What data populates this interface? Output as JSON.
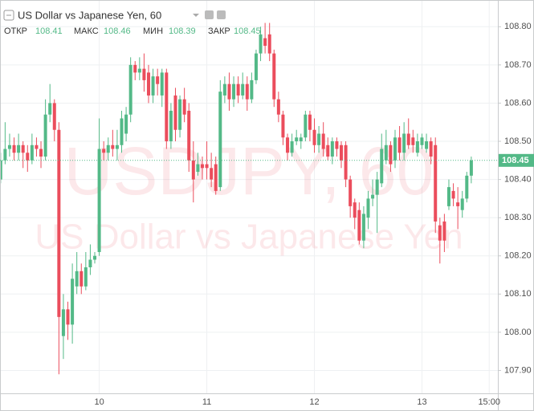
{
  "header": {
    "title": "US Dollar vs Japanese Yen, 60",
    "ohlc": [
      {
        "label": "ОТКР",
        "value": 108.41
      },
      {
        "label": "МАКС",
        "value": 108.46
      },
      {
        "label": "МИН",
        "value": 108.39
      },
      {
        "label": "ЗАКР",
        "value": 108.45
      }
    ]
  },
  "chart_data": {
    "type": "candlestick",
    "watermark": [
      "USDJPY, 60",
      "US Dollar vs Japanese Yen"
    ],
    "up_color": "#53b987",
    "down_color": "#eb4d5c",
    "categories": [
      null,
      null,
      null,
      null,
      null,
      null,
      null,
      null,
      null,
      null,
      null,
      null,
      null,
      null,
      null,
      null,
      null,
      null,
      null,
      null,
      null,
      null,
      "10",
      null,
      null,
      null,
      null,
      null,
      null,
      null,
      null,
      null,
      null,
      null,
      null,
      null,
      null,
      null,
      null,
      null,
      null,
      null,
      null,
      null,
      null,
      null,
      "11",
      null,
      null,
      null,
      null,
      null,
      null,
      null,
      null,
      null,
      null,
      null,
      null,
      null,
      null,
      null,
      null,
      null,
      null,
      null,
      null,
      null,
      null,
      null,
      "12",
      null,
      null,
      null,
      null,
      null,
      null,
      null,
      null,
      null,
      null,
      null,
      null,
      null,
      null,
      null,
      null,
      null,
      null,
      null,
      null,
      null,
      null,
      null,
      "13",
      null,
      null,
      null,
      null,
      null,
      null,
      null,
      null,
      null,
      null,
      null,
      null,
      null,
      null,
      "15:00"
    ],
    "open": [
      108.4,
      108.45,
      108.48,
      108.49,
      108.47,
      108.49,
      108.47,
      108.45,
      108.49,
      108.48,
      108.46,
      108.57,
      108.6,
      108.53,
      107.99,
      108.06,
      108.02,
      108.12,
      108.16,
      108.12,
      108.17,
      108.19,
      108.21,
      108.48,
      108.47,
      108.49,
      108.48,
      108.49,
      108.52,
      108.57,
      108.7,
      108.68,
      108.69,
      108.68,
      108.62,
      108.67,
      108.62,
      108.68,
      108.5,
      108.62,
      108.53,
      108.61,
      108.58,
      108.45,
      108.42,
      108.44,
      108.44,
      108.43,
      108.44,
      108.38,
      108.62,
      108.65,
      108.61,
      108.65,
      108.62,
      108.65,
      108.61,
      108.66,
      108.73,
      108.77,
      108.78,
      108.73,
      108.61,
      108.57,
      108.51,
      108.47,
      108.5,
      108.5,
      108.51,
      108.57,
      108.53,
      108.49,
      108.52,
      108.49,
      108.46,
      108.5,
      108.49,
      108.49,
      108.4,
      108.34,
      108.32,
      108.24,
      108.3,
      108.35,
      108.36,
      108.39,
      108.45,
      108.49,
      108.45,
      108.51,
      108.47,
      108.52,
      108.51,
      108.47,
      108.49,
      108.48,
      108.5,
      108.49,
      108.28,
      108.29,
      108.33,
      108.37,
      108.34,
      108.32,
      108.35,
      108.41,
      null,
      null,
      null,
      null
    ],
    "high": [
      108.47,
      108.55,
      108.52,
      108.51,
      108.52,
      108.5,
      108.49,
      108.52,
      108.51,
      108.5,
      108.61,
      108.65,
      108.61,
      108.55,
      108.1,
      108.08,
      108.18,
      108.21,
      108.18,
      108.21,
      108.23,
      108.21,
      108.56,
      108.5,
      108.51,
      108.53,
      108.53,
      108.58,
      108.59,
      108.72,
      108.71,
      108.72,
      108.73,
      108.7,
      108.69,
      108.69,
      108.69,
      108.69,
      108.6,
      108.64,
      108.62,
      108.64,
      108.6,
      108.5,
      108.47,
      108.46,
      108.5,
      108.47,
      108.46,
      108.66,
      108.67,
      108.68,
      108.67,
      108.67,
      108.68,
      108.67,
      108.68,
      108.74,
      108.8,
      108.81,
      108.81,
      108.74,
      108.63,
      108.58,
      108.52,
      108.52,
      108.53,
      108.52,
      108.58,
      108.58,
      108.56,
      108.54,
      108.55,
      108.51,
      108.51,
      108.51,
      108.5,
      108.5,
      108.41,
      108.35,
      108.34,
      108.33,
      108.37,
      108.4,
      108.42,
      108.52,
      108.53,
      108.5,
      108.53,
      108.54,
      108.55,
      108.56,
      108.53,
      108.52,
      108.52,
      108.52,
      108.51,
      108.51,
      108.3,
      108.31,
      108.4,
      108.39,
      108.38,
      108.37,
      108.42,
      108.46,
      null,
      null,
      null,
      null
    ],
    "low": [
      108.39,
      108.44,
      108.46,
      108.45,
      108.45,
      108.43,
      108.42,
      108.44,
      108.46,
      108.43,
      108.45,
      108.55,
      108.5,
      107.89,
      107.93,
      107.98,
      107.97,
      108.1,
      108.1,
      108.11,
      108.15,
      108.18,
      108.2,
      108.45,
      108.45,
      108.46,
      108.45,
      108.47,
      108.5,
      108.55,
      108.66,
      108.66,
      108.63,
      108.6,
      108.6,
      108.62,
      108.59,
      108.48,
      108.48,
      108.5,
      108.51,
      108.55,
      108.42,
      108.34,
      108.41,
      108.4,
      108.4,
      108.38,
      108.36,
      108.37,
      108.6,
      108.58,
      108.59,
      108.6,
      108.61,
      108.58,
      108.6,
      108.65,
      108.71,
      108.73,
      108.71,
      108.59,
      108.55,
      108.49,
      108.45,
      108.46,
      108.49,
      108.48,
      108.5,
      108.5,
      108.47,
      108.47,
      108.46,
      108.45,
      108.44,
      108.46,
      108.43,
      108.38,
      108.3,
      108.27,
      108.23,
      108.22,
      108.27,
      108.33,
      108.26,
      108.38,
      108.44,
      108.42,
      108.43,
      108.45,
      108.45,
      108.48,
      108.47,
      108.46,
      108.48,
      108.47,
      108.44,
      108.26,
      108.18,
      108.21,
      108.32,
      108.33,
      108.27,
      108.3,
      108.34,
      108.39,
      null,
      null,
      null,
      null
    ],
    "close": [
      108.45,
      108.48,
      108.49,
      108.47,
      108.49,
      108.47,
      108.45,
      108.49,
      108.48,
      108.46,
      108.57,
      108.6,
      108.53,
      108.04,
      108.06,
      108.02,
      108.14,
      108.16,
      108.12,
      108.17,
      108.19,
      108.2,
      108.48,
      108.47,
      108.49,
      108.48,
      108.49,
      108.56,
      108.57,
      108.7,
      108.68,
      108.69,
      108.66,
      108.62,
      108.67,
      108.65,
      108.68,
      108.5,
      108.58,
      108.53,
      108.61,
      108.57,
      108.45,
      108.4,
      108.44,
      108.43,
      108.43,
      108.4,
      108.37,
      108.63,
      108.65,
      108.61,
      108.65,
      108.62,
      108.65,
      108.61,
      108.66,
      108.73,
      108.78,
      108.75,
      108.73,
      108.61,
      108.57,
      108.51,
      108.47,
      108.5,
      108.51,
      108.51,
      108.57,
      108.53,
      108.49,
      108.52,
      108.48,
      108.46,
      108.5,
      108.48,
      108.45,
      108.4,
      108.33,
      108.3,
      108.24,
      108.31,
      108.35,
      108.36,
      108.4,
      108.48,
      108.49,
      108.44,
      108.51,
      108.47,
      108.52,
      108.49,
      108.49,
      108.5,
      108.51,
      108.5,
      108.46,
      108.29,
      108.24,
      108.24,
      108.38,
      108.35,
      108.33,
      108.35,
      108.41,
      108.45,
      null,
      null,
      null,
      null
    ],
    "last_price": 108.45,
    "ylim": [
      107.84,
      108.87
    ],
    "yticks": [
      {
        "value": 107.9,
        "label": "107.90"
      },
      {
        "value": 108.0,
        "label": "108.00"
      },
      {
        "value": 108.1,
        "label": "108.10"
      },
      {
        "value": 108.2,
        "label": "108.20"
      },
      {
        "value": 108.3,
        "label": "108.30"
      },
      {
        "value": 108.4,
        "label": "108.40"
      },
      {
        "value": 108.5,
        "label": "108.50"
      },
      {
        "value": 108.6,
        "label": "108.60"
      },
      {
        "value": 108.7,
        "label": "108.70"
      },
      {
        "value": 108.8,
        "label": "108.80"
      }
    ],
    "grid": true
  }
}
